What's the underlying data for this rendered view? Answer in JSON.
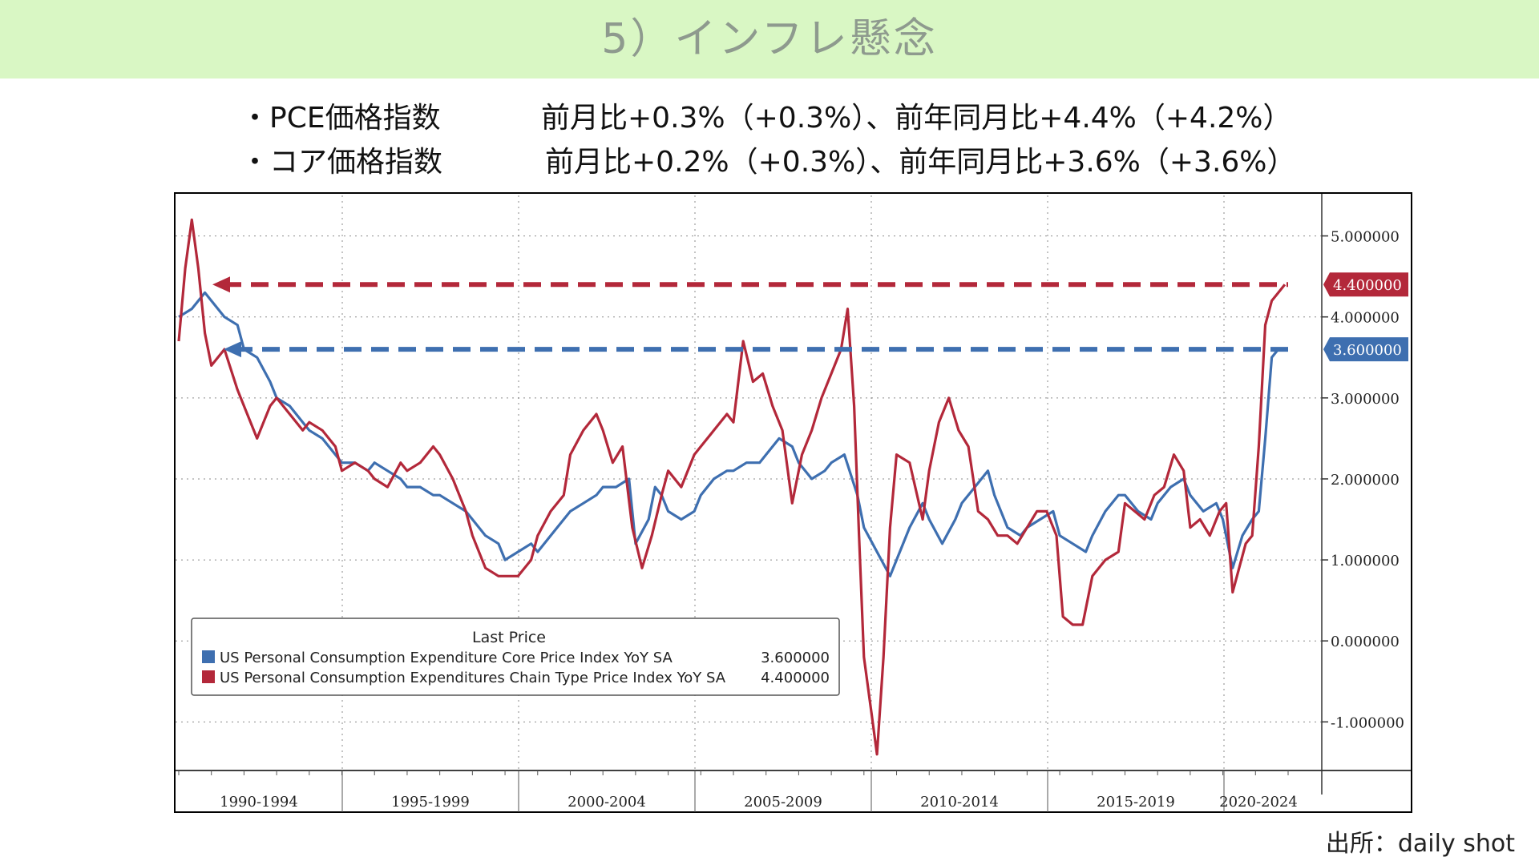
{
  "header": {
    "title": "5）インフレ懸念"
  },
  "bullets": [
    {
      "label": "・PCE価格指数",
      "stats": "前月比+0.3%（+0.3%）、前年同月比+4.4%（+4.2%）"
    },
    {
      "label": "・コア価格指数",
      "stats": "前月比+0.2%（+0.3%）、前年同月比+3.6%（+3.6%）"
    }
  ],
  "source": "出所：daily shot",
  "colors": {
    "core": "#3e6fb0",
    "pce": "#b3283a",
    "header_bg": "#d9f7c4"
  },
  "chart_data": {
    "type": "line",
    "x_range": [
      1988.0,
      2022.0
    ],
    "ylim": [
      -1.6,
      5.5
    ],
    "y_ticks": [
      5.0,
      4.0,
      3.0,
      2.0,
      1.0,
      0.0,
      -1.0
    ],
    "y_tick_labels": [
      "5.000000",
      "4.000000",
      "3.000000",
      "2.000000",
      "1.000000",
      "0.000000",
      "-1.000000"
    ],
    "periods": [
      "1990-1994",
      "1995-1999",
      "2000-2004",
      "2005-2009",
      "2010-2014",
      "2015-2019",
      "2020-2024"
    ],
    "legend": {
      "title": "Last Price",
      "entries": [
        {
          "name": "US Personal Consumption Expenditure Core Price Index YoY SA",
          "value": "3.600000"
        },
        {
          "name": "US Personal Consumption Expenditures Chain Type Price Index YoY SA",
          "value": "4.400000"
        }
      ]
    },
    "last_value_labels": {
      "pce": "4.400000",
      "core": "3.600000"
    },
    "reference_lines": [
      {
        "series": "pce",
        "y": 4.4
      },
      {
        "series": "core",
        "y": 3.6
      }
    ],
    "series": [
      {
        "id": "core",
        "name": "US Personal Consumption Expenditure Core Price Index YoY SA",
        "x": [
          1988.0,
          1988.4,
          1988.8,
          1989.0,
          1989.4,
          1989.8,
          1990.0,
          1990.4,
          1990.8,
          1991.0,
          1991.4,
          1991.8,
          1992.0,
          1992.4,
          1992.8,
          1993.0,
          1993.4,
          1993.8,
          1994.0,
          1994.4,
          1994.8,
          1995.0,
          1995.4,
          1995.8,
          1996.0,
          1996.4,
          1996.8,
          1997.0,
          1997.4,
          1997.8,
          1998.0,
          1998.4,
          1998.8,
          1999.0,
          1999.4,
          1999.8,
          2000.0,
          2000.4,
          2000.8,
          2001.0,
          2001.4,
          2001.8,
          2002.0,
          2002.4,
          2002.6,
          2002.8,
          2003.0,
          2003.4,
          2003.8,
          2004.0,
          2004.4,
          2004.8,
          2005.0,
          2005.4,
          2005.8,
          2006.0,
          2006.4,
          2006.8,
          2007.0,
          2007.4,
          2007.8,
          2008.0,
          2008.4,
          2008.8,
          2009.0,
          2009.4,
          2009.8,
          2010.0,
          2010.4,
          2010.8,
          2011.0,
          2011.4,
          2011.8,
          2012.0,
          2012.4,
          2012.8,
          2013.0,
          2013.4,
          2013.8,
          2014.0,
          2014.4,
          2014.8,
          2015.0,
          2015.4,
          2015.8,
          2016.0,
          2016.4,
          2016.8,
          2017.0,
          2017.4,
          2017.8,
          2018.0,
          2018.4,
          2018.8,
          2019.0,
          2019.4,
          2019.8,
          2020.0,
          2020.3,
          2020.6,
          2020.9,
          2021.1,
          2021.3,
          2021.5,
          2021.7,
          2021.9
        ],
        "values": [
          4.0,
          4.1,
          4.3,
          4.2,
          4.0,
          3.9,
          3.6,
          3.5,
          3.2,
          3.0,
          2.9,
          2.7,
          2.6,
          2.5,
          2.3,
          2.2,
          2.2,
          2.1,
          2.2,
          2.1,
          2.0,
          1.9,
          1.9,
          1.8,
          1.8,
          1.7,
          1.6,
          1.5,
          1.3,
          1.2,
          1.0,
          1.1,
          1.2,
          1.1,
          1.3,
          1.5,
          1.6,
          1.7,
          1.8,
          1.9,
          1.9,
          2.0,
          1.2,
          1.5,
          1.9,
          1.8,
          1.6,
          1.5,
          1.6,
          1.8,
          2.0,
          2.1,
          2.1,
          2.2,
          2.2,
          2.3,
          2.5,
          2.4,
          2.2,
          2.0,
          2.1,
          2.2,
          2.3,
          1.8,
          1.4,
          1.1,
          0.8,
          1.0,
          1.4,
          1.7,
          1.5,
          1.2,
          1.5,
          1.7,
          1.9,
          2.1,
          1.8,
          1.4,
          1.3,
          1.4,
          1.5,
          1.6,
          1.3,
          1.2,
          1.1,
          1.3,
          1.6,
          1.8,
          1.8,
          1.6,
          1.5,
          1.7,
          1.9,
          2.0,
          1.8,
          1.6,
          1.7,
          1.5,
          0.9,
          1.3,
          1.5,
          1.6,
          2.5,
          3.5,
          3.6,
          3.6
        ]
      },
      {
        "id": "pce",
        "name": "US Personal Consumption Expenditures Chain Type Price Index YoY SA",
        "x": [
          1988.0,
          1988.2,
          1988.4,
          1988.6,
          1988.8,
          1989.0,
          1989.4,
          1989.8,
          1990.0,
          1990.4,
          1990.6,
          1990.8,
          1991.0,
          1991.4,
          1991.8,
          1992.0,
          1992.4,
          1992.8,
          1993.0,
          1993.4,
          1993.8,
          1994.0,
          1994.4,
          1994.8,
          1995.0,
          1995.4,
          1995.8,
          1996.0,
          1996.4,
          1996.8,
          1997.0,
          1997.4,
          1997.8,
          1998.0,
          1998.4,
          1998.8,
          1999.0,
          1999.4,
          1999.8,
          2000.0,
          2000.4,
          2000.8,
          2001.0,
          2001.3,
          2001.6,
          2001.9,
          2002.2,
          2002.5,
          2002.8,
          2003.0,
          2003.4,
          2003.8,
          2004.0,
          2004.4,
          2004.8,
          2005.0,
          2005.3,
          2005.6,
          2005.9,
          2006.2,
          2006.5,
          2006.8,
          2007.1,
          2007.4,
          2007.7,
          2008.0,
          2008.3,
          2008.5,
          2008.7,
          2008.85,
          2009.0,
          2009.2,
          2009.4,
          2009.6,
          2009.8,
          2010.0,
          2010.4,
          2010.8,
          2011.0,
          2011.3,
          2011.6,
          2011.9,
          2012.2,
          2012.5,
          2012.8,
          2013.1,
          2013.4,
          2013.7,
          2014.0,
          2014.3,
          2014.6,
          2014.9,
          2015.1,
          2015.4,
          2015.7,
          2016.0,
          2016.4,
          2016.8,
          2017.0,
          2017.3,
          2017.6,
          2017.9,
          2018.2,
          2018.5,
          2018.8,
          2019.0,
          2019.3,
          2019.6,
          2019.9,
          2020.1,
          2020.3,
          2020.5,
          2020.7,
          2020.9,
          2021.1,
          2021.3,
          2021.5,
          2021.7,
          2021.9
        ],
        "values": [
          3.7,
          4.6,
          5.2,
          4.6,
          3.8,
          3.4,
          3.6,
          3.1,
          2.9,
          2.5,
          2.7,
          2.9,
          3.0,
          2.8,
          2.6,
          2.7,
          2.6,
          2.4,
          2.1,
          2.2,
          2.1,
          2.0,
          1.9,
          2.2,
          2.1,
          2.2,
          2.4,
          2.3,
          2.0,
          1.6,
          1.3,
          0.9,
          0.8,
          0.8,
          0.8,
          1.0,
          1.3,
          1.6,
          1.8,
          2.3,
          2.6,
          2.8,
          2.6,
          2.2,
          2.4,
          1.4,
          0.9,
          1.3,
          1.8,
          2.1,
          1.9,
          2.3,
          2.4,
          2.6,
          2.8,
          2.7,
          3.7,
          3.2,
          3.3,
          2.9,
          2.6,
          1.7,
          2.3,
          2.6,
          3.0,
          3.3,
          3.6,
          4.1,
          2.9,
          1.3,
          -0.2,
          -0.8,
          -1.4,
          -0.2,
          1.4,
          2.3,
          2.2,
          1.5,
          2.1,
          2.7,
          3.0,
          2.6,
          2.4,
          1.6,
          1.5,
          1.3,
          1.3,
          1.2,
          1.4,
          1.6,
          1.6,
          1.3,
          0.3,
          0.2,
          0.2,
          0.8,
          1.0,
          1.1,
          1.7,
          1.6,
          1.5,
          1.8,
          1.9,
          2.3,
          2.1,
          1.4,
          1.5,
          1.3,
          1.6,
          1.7,
          0.6,
          0.9,
          1.2,
          1.3,
          2.4,
          3.9,
          4.2,
          4.3,
          4.4
        ]
      }
    ]
  }
}
